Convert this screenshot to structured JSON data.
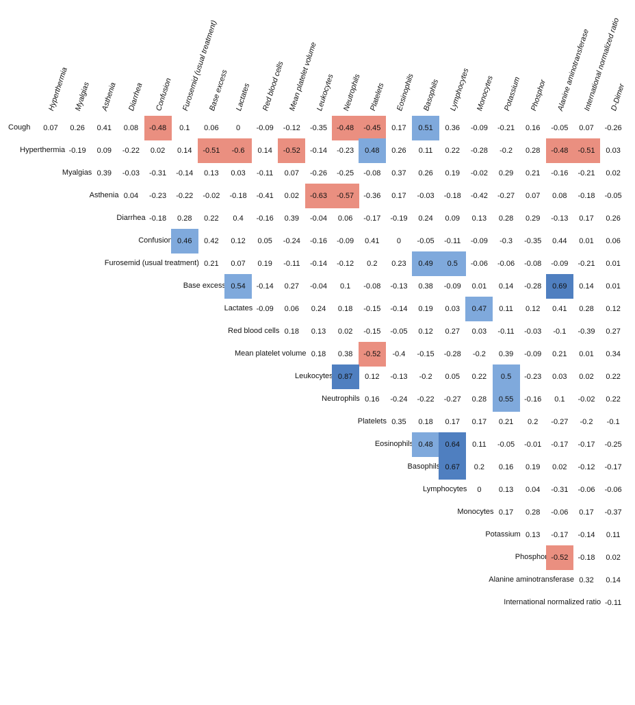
{
  "chart_data": {
    "type": "heatmap",
    "title": "",
    "columns": [
      "Hyperthermia",
      "Myalgias",
      "Asthenia",
      "Diarrhea",
      "Confusion",
      "Furosemid (usual treatment)",
      "Base excess",
      "Lactates",
      "Red blood cells",
      "Mean platelet volume",
      "Leukocytes",
      "Neutrophils",
      "Platelets",
      "Eosinophils",
      "Basophils",
      "Lymphocytes",
      "Monocytes",
      "Potassium",
      "Phosphor",
      "Alanine aminotransferase",
      "International normalized ratio",
      "D-Dimer"
    ],
    "rows": [
      {
        "label": "Cough",
        "values": [
          "0.07",
          "0.26",
          "0.41",
          "0.08",
          "-0.48",
          "0.1",
          "0.06",
          "0",
          "-0.09",
          "-0.12",
          "-0.35",
          "-0.48",
          "-0.45",
          "0.17",
          "0.51",
          "0.36",
          "-0.09",
          "-0.21",
          "0.16",
          "-0.05",
          "0.07",
          "-0.26"
        ]
      },
      {
        "label": "Hyperthermia",
        "values": [
          "-0.19",
          "0.09",
          "-0.22",
          "0.02",
          "0.14",
          "-0.51",
          "-0.6",
          "0.14",
          "-0.52",
          "-0.14",
          "-0.23",
          "0.48",
          "0.26",
          "0.11",
          "0.22",
          "-0.28",
          "-0.2",
          "0.28",
          "-0.48",
          "-0.51",
          "0.03"
        ]
      },
      {
        "label": "Myalgias",
        "values": [
          "0.39",
          "-0.03",
          "-0.31",
          "-0.14",
          "0.13",
          "0.03",
          "-0.11",
          "0.07",
          "-0.26",
          "-0.25",
          "-0.08",
          "0.37",
          "0.26",
          "0.19",
          "-0.02",
          "0.29",
          "0.21",
          "-0.16",
          "-0.21",
          "0.02"
        ]
      },
      {
        "label": "Asthenia",
        "values": [
          "0.04",
          "-0.23",
          "-0.22",
          "-0.02",
          "-0.18",
          "-0.41",
          "0.02",
          "-0.63",
          "-0.57",
          "-0.36",
          "0.17",
          "-0.03",
          "-0.18",
          "-0.42",
          "-0.27",
          "0.07",
          "0.08",
          "-0.18",
          "-0.05"
        ]
      },
      {
        "label": "Diarrhea",
        "values": [
          "-0.18",
          "0.28",
          "0.22",
          "0.4",
          "-0.16",
          "0.39",
          "-0.04",
          "0.06",
          "-0.17",
          "-0.19",
          "0.24",
          "0.09",
          "0.13",
          "0.28",
          "0.29",
          "-0.13",
          "0.17",
          "0.26"
        ]
      },
      {
        "label": "Confusion",
        "values": [
          "0.46",
          "0.42",
          "0.12",
          "0.05",
          "-0.24",
          "-0.16",
          "-0.09",
          "0.41",
          "0",
          "-0.05",
          "-0.11",
          "-0.09",
          "-0.3",
          "-0.35",
          "0.44",
          "0.01",
          "0.06"
        ]
      },
      {
        "label": "Furosemid (usual treatment)",
        "values": [
          "0.21",
          "0.07",
          "0.19",
          "-0.11",
          "-0.14",
          "-0.12",
          "0.2",
          "0.23",
          "0.49",
          "0.5",
          "-0.06",
          "-0.06",
          "-0.08",
          "-0.09",
          "-0.21",
          "0.01"
        ]
      },
      {
        "label": "Base excess",
        "values": [
          "0.54",
          "-0.14",
          "0.27",
          "-0.04",
          "0.1",
          "-0.08",
          "-0.13",
          "0.38",
          "-0.09",
          "0.01",
          "0.14",
          "-0.28",
          "0.69",
          "0.14",
          "0.01"
        ]
      },
      {
        "label": "Lactates",
        "values": [
          "-0.09",
          "0.06",
          "0.24",
          "0.18",
          "-0.15",
          "-0.14",
          "0.19",
          "0.03",
          "0.47",
          "0.11",
          "0.12",
          "0.41",
          "0.28",
          "0.12"
        ]
      },
      {
        "label": "Red blood cells",
        "values": [
          "0.18",
          "0.13",
          "0.02",
          "-0.15",
          "-0.05",
          "0.12",
          "0.27",
          "0.03",
          "-0.11",
          "-0.03",
          "-0.1",
          "-0.39",
          "0.27"
        ]
      },
      {
        "label": "Mean platelet volume",
        "values": [
          "0.18",
          "0.38",
          "-0.52",
          "-0.4",
          "-0.15",
          "-0.28",
          "-0.2",
          "0.39",
          "-0.09",
          "0.21",
          "0.01",
          "0.34"
        ]
      },
      {
        "label": "Leukocytes",
        "values": [
          "0.87",
          "0.12",
          "-0.13",
          "-0.2",
          "0.05",
          "0.22",
          "0.5",
          "-0.23",
          "0.03",
          "0.02",
          "0.22"
        ]
      },
      {
        "label": "Neutrophils",
        "values": [
          "0.16",
          "-0.24",
          "-0.22",
          "-0.27",
          "0.28",
          "0.55",
          "-0.16",
          "0.1",
          "-0.02",
          "0.22"
        ]
      },
      {
        "label": "Platelets",
        "values": [
          "0.35",
          "0.18",
          "0.17",
          "0.17",
          "0.21",
          "0.2",
          "-0.27",
          "-0.2",
          "-0.1"
        ]
      },
      {
        "label": "Eosinophils",
        "values": [
          "0.48",
          "0.64",
          "0.11",
          "-0.05",
          "-0.01",
          "-0.17",
          "-0.17",
          "-0.25"
        ]
      },
      {
        "label": "Basophils",
        "values": [
          "0.67",
          "0.2",
          "0.16",
          "0.19",
          "0.02",
          "-0.12",
          "-0.17"
        ]
      },
      {
        "label": "Lymphocytes",
        "values": [
          "0",
          "0.13",
          "0.04",
          "-0.31",
          "-0.06",
          "-0.06"
        ]
      },
      {
        "label": "Monocytes",
        "values": [
          "0.17",
          "0.28",
          "-0.06",
          "0.17",
          "-0.37"
        ]
      },
      {
        "label": "Potassium",
        "values": [
          "0.13",
          "-0.17",
          "-0.14",
          "0.11"
        ]
      },
      {
        "label": "Phosphor",
        "values": [
          "-0.52",
          "-0.18",
          "0.02"
        ]
      },
      {
        "label": "Alanine aminotransferase",
        "values": [
          "0.32",
          "0.14"
        ]
      },
      {
        "label": "International normalized ratio",
        "values": [
          "-0.11"
        ]
      }
    ],
    "highlight_threshold": 0.45,
    "colors": {
      "positive_moderate": "#7fa9dc",
      "positive_strong": "#4f7fc0",
      "negative": "#ea8f80",
      "text": "#111111"
    }
  }
}
